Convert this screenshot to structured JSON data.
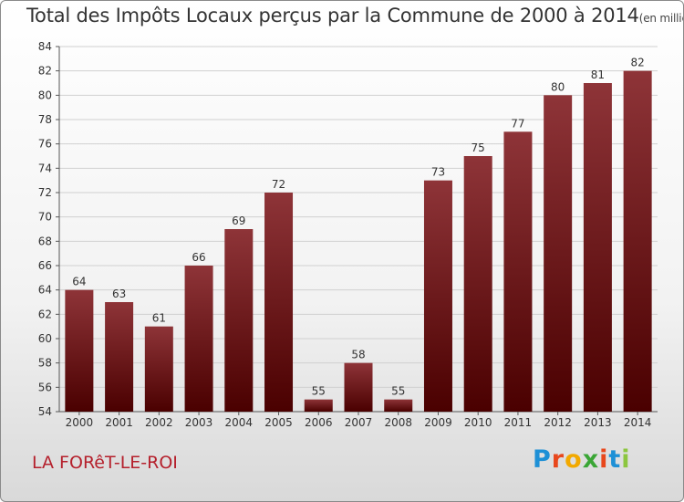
{
  "header": {
    "title": "Total des Impôts Locaux perçus par la Commune de 2000 à 2014",
    "unit": "(en milliers d'€)"
  },
  "commune_name": "LA FORêT-LE-ROI",
  "logo": {
    "text": "Proxiti",
    "letters": [
      "P",
      "r",
      "o",
      "x",
      "i",
      "t",
      "i"
    ],
    "colors": [
      "#1e90d6",
      "#e8471c",
      "#f2a900",
      "#3aa635",
      "#e8471c",
      "#1e90d6",
      "#8cc63f"
    ]
  },
  "colors": {
    "bar_top": "#8e3438",
    "bar_bottom": "#4a0000",
    "grid": "#d0d0d0"
  },
  "chart_data": {
    "type": "bar",
    "title": "Total des Impôts Locaux perçus par la Commune de 2000 à 2014",
    "categories": [
      "2000",
      "2001",
      "2002",
      "2003",
      "2004",
      "2005",
      "2006",
      "2007",
      "2008",
      "2009",
      "2010",
      "2011",
      "2012",
      "2013",
      "2014"
    ],
    "values": [
      64,
      63,
      61,
      66,
      69,
      72,
      55,
      58,
      55,
      73,
      75,
      77,
      80,
      81,
      82
    ],
    "ylim": [
      54,
      84
    ],
    "yticks": [
      54,
      56,
      58,
      60,
      62,
      64,
      66,
      68,
      70,
      72,
      74,
      76,
      78,
      80,
      82,
      84
    ],
    "grid": true,
    "xlabel": "",
    "ylabel": ""
  }
}
